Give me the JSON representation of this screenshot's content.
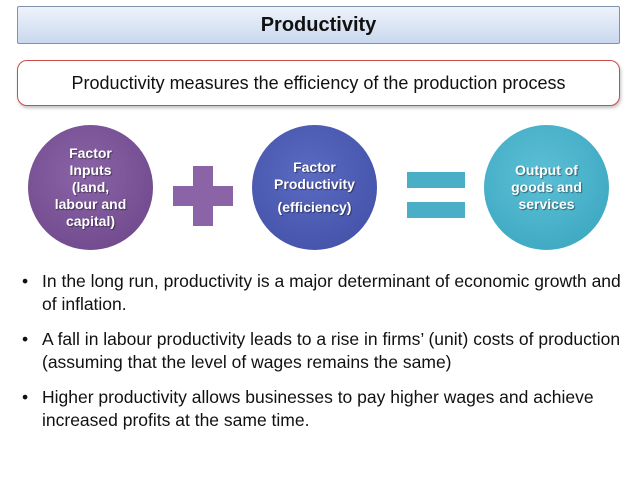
{
  "title": "Productivity",
  "definition": "Productivity measures the efficiency of the production process",
  "diagram": {
    "circle_inputs": {
      "lines": [
        "Factor",
        "Inputs",
        "(land,",
        "labour and",
        "capital)"
      ]
    },
    "operator_plus": "plus-icon",
    "circle_productivity": {
      "lines": [
        "Factor",
        "Productivity",
        "(efficiency)"
      ]
    },
    "operator_equals": "equals-icon",
    "circle_output": {
      "lines": [
        "Output of",
        "goods and",
        "services"
      ]
    },
    "colors": {
      "purple": "#6a4486",
      "blue": "#3f4ea3",
      "teal": "#37a3bd",
      "title_border": "#7f93b0",
      "definition_border": "#c9504a"
    }
  },
  "bullets": [
    "In the long run, productivity is a major determinant of economic growth and of inflation.",
    "A fall in labour productivity leads to a rise in firms’ (unit) costs of production (assuming that the level of wages remains the same)",
    "Higher productivity allows businesses to pay higher wages and achieve increased profits at the same time."
  ],
  "bullet_symbol": "•"
}
